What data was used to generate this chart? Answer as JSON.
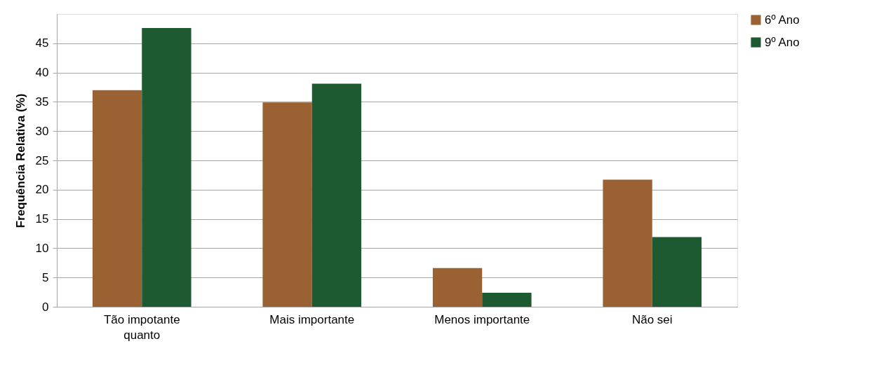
{
  "chart_data": {
    "type": "bar",
    "ylabel": "Frequência Relativa (%)",
    "categories": [
      "Tão impotante quanto",
      "Mais importante",
      "Menos importante",
      "Não sei"
    ],
    "series": [
      {
        "name": "6º Ano",
        "color": "#9a6232",
        "values": [
          37.0,
          34.9,
          6.6,
          21.7
        ]
      },
      {
        "name": "9º Ano",
        "color": "#1d5a32",
        "values": [
          47.6,
          38.1,
          2.4,
          11.9
        ]
      }
    ],
    "ylim": [
      0,
      50
    ],
    "yticks": [
      0,
      5,
      10,
      15,
      20,
      25,
      30,
      35,
      40,
      45
    ],
    "grid": "y",
    "legend": "right"
  }
}
